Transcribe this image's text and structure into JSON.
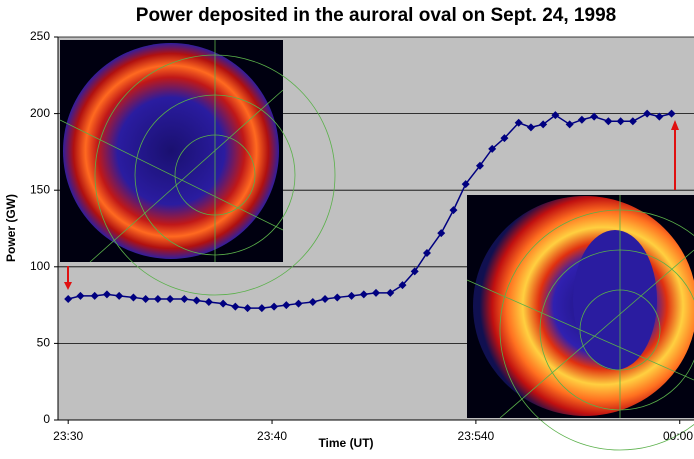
{
  "chart_data": {
    "type": "line",
    "title": "Power deposited in the auroral oval on Sept. 24, 1998",
    "xlabel": "Time (UT)",
    "ylabel": "Power (GW)",
    "x": [
      0,
      0.6,
      1.3,
      1.9,
      2.5,
      3.2,
      3.8,
      4.4,
      5.0,
      5.7,
      6.3,
      6.9,
      7.6,
      8.2,
      8.8,
      9.5,
      10.1,
      10.7,
      11.3,
      12.0,
      12.6,
      13.2,
      13.9,
      14.5,
      15.1,
      15.8,
      16.4,
      17.0,
      17.6,
      18.3,
      18.9,
      19.5,
      20.2,
      20.8,
      21.4,
      22.1,
      22.7,
      23.3,
      23.9,
      24.6,
      25.2,
      25.8,
      26.5,
      27.1,
      27.7,
      28.4,
      29.0,
      29.6
    ],
    "values": [
      79,
      81,
      81,
      82,
      81,
      80,
      79,
      79,
      79,
      79,
      78,
      77,
      76,
      74,
      73,
      73,
      74,
      75,
      76,
      77,
      79,
      80,
      81,
      82,
      83,
      83,
      88,
      97,
      109,
      122,
      137,
      154,
      166,
      177,
      184,
      194,
      191,
      193,
      199,
      193,
      196,
      198,
      195,
      195,
      195,
      200,
      198,
      200
    ],
    "color": "#000080",
    "xlim": [
      -0.5,
      30.7
    ],
    "ylim": [
      0,
      250
    ],
    "xticks": [
      {
        "value": 0,
        "label": "23:30"
      },
      {
        "value": 10,
        "label": "23:40"
      },
      {
        "value": 20,
        "label": "23:540"
      },
      {
        "value": 30,
        "label": "00:00"
      }
    ],
    "yticks": [
      0,
      50,
      100,
      150,
      200,
      250
    ],
    "grid": true
  }
}
